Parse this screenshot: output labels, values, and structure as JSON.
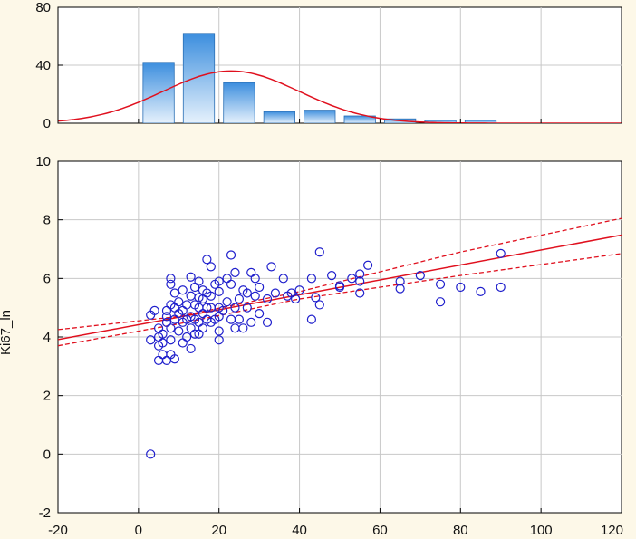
{
  "colors": {
    "background": "#fdf8e8",
    "plot_bg": "#ffffff",
    "grid": "#c8c8c8",
    "points": "#1f1fcc",
    "fit": "#e0101e",
    "bar_top": "#3c8ede",
    "bar_bottom": "#e6f1fc",
    "bar_edge": "#2a6fb5"
  },
  "chart_data": [
    {
      "type": "bar",
      "subtype": "histogram",
      "x_bins": [
        [
          0,
          10
        ],
        [
          10,
          20
        ],
        [
          20,
          30
        ],
        [
          30,
          40
        ],
        [
          40,
          50
        ],
        [
          50,
          60
        ],
        [
          60,
          70
        ],
        [
          70,
          80
        ],
        [
          80,
          90
        ]
      ],
      "values": [
        42,
        62,
        28,
        8,
        9,
        5,
        3,
        2,
        2
      ],
      "overlay": {
        "type": "normal_curve",
        "mean": 23,
        "sd": 17,
        "peak": 36
      },
      "xlim": [
        -20,
        120
      ],
      "ylim": [
        0,
        80
      ],
      "yticks": [
        "0",
        "40",
        "80"
      ],
      "grid": true
    },
    {
      "type": "scatter",
      "xlabel": "",
      "ylabel": "Ki67_ln",
      "xlim": [
        -20,
        120
      ],
      "ylim": [
        -2,
        10
      ],
      "xticks": [
        "-20",
        "0",
        "20",
        "40",
        "60",
        "80",
        "100",
        "120"
      ],
      "yticks": [
        "-2",
        "0",
        "2",
        "4",
        "6",
        "8",
        "10"
      ],
      "grid": true,
      "fit_line": {
        "slope": 0.0255,
        "intercept": 4.42
      },
      "confidence_band": {
        "upper": [
          [
            -20,
            4.25
          ],
          [
            10,
            4.7
          ],
          [
            40,
            5.55
          ],
          [
            80,
            6.9
          ],
          [
            120,
            8.05
          ]
        ],
        "lower": [
          [
            -20,
            3.7
          ],
          [
            10,
            4.45
          ],
          [
            40,
            5.3
          ],
          [
            80,
            6.1
          ],
          [
            120,
            6.85
          ]
        ]
      },
      "points": [
        [
          3,
          0
        ],
        [
          3,
          3.9
        ],
        [
          3,
          4.75
        ],
        [
          4,
          4.9
        ],
        [
          5,
          3.2
        ],
        [
          5,
          3.7
        ],
        [
          5,
          4.0
        ],
        [
          5,
          4.3
        ],
        [
          6,
          3.4
        ],
        [
          6,
          3.8
        ],
        [
          6,
          4.1
        ],
        [
          7,
          3.2
        ],
        [
          7,
          4.5
        ],
        [
          7,
          4.7
        ],
        [
          7,
          4.9
        ],
        [
          8,
          3.4
        ],
        [
          8,
          3.9
        ],
        [
          8,
          4.3
        ],
        [
          8,
          5.1
        ],
        [
          8,
          5.8
        ],
        [
          8,
          6.0
        ],
        [
          9,
          4.6
        ],
        [
          9,
          5.0
        ],
        [
          9,
          5.5
        ],
        [
          9,
          3.25
        ],
        [
          10,
          4.2
        ],
        [
          10,
          4.8
        ],
        [
          10,
          5.2
        ],
        [
          11,
          3.8
        ],
        [
          11,
          4.5
        ],
        [
          11,
          4.9
        ],
        [
          11,
          5.6
        ],
        [
          12,
          4.0
        ],
        [
          12,
          4.6
        ],
        [
          12,
          5.1
        ],
        [
          13,
          3.6
        ],
        [
          13,
          4.3
        ],
        [
          13,
          4.7
        ],
        [
          13,
          5.4
        ],
        [
          13,
          6.05
        ],
        [
          14,
          4.1
        ],
        [
          14,
          4.6
        ],
        [
          14,
          5.1
        ],
        [
          14,
          5.7
        ],
        [
          15,
          4.1
        ],
        [
          15,
          4.5
        ],
        [
          15,
          5.0
        ],
        [
          15,
          5.35
        ],
        [
          15,
          5.9
        ],
        [
          16,
          4.3
        ],
        [
          16,
          4.8
        ],
        [
          16,
          5.3
        ],
        [
          16,
          5.6
        ],
        [
          17,
          4.6
        ],
        [
          17,
          5.0
        ],
        [
          17,
          5.5
        ],
        [
          17,
          6.65
        ],
        [
          18,
          4.5
        ],
        [
          18,
          5.0
        ],
        [
          18,
          5.4
        ],
        [
          18,
          6.4
        ],
        [
          19,
          4.6
        ],
        [
          19,
          5.8
        ],
        [
          20,
          3.9
        ],
        [
          20,
          4.2
        ],
        [
          20,
          4.7
        ],
        [
          20,
          5.0
        ],
        [
          20,
          5.55
        ],
        [
          20,
          5.9
        ],
        [
          21,
          4.9
        ],
        [
          22,
          5.2
        ],
        [
          22,
          6.0
        ],
        [
          23,
          4.6
        ],
        [
          23,
          5.8
        ],
        [
          23,
          6.8
        ],
        [
          24,
          4.3
        ],
        [
          24,
          5.0
        ],
        [
          24,
          6.2
        ],
        [
          25,
          4.6
        ],
        [
          25,
          5.3
        ],
        [
          26,
          4.3
        ],
        [
          26,
          5.6
        ],
        [
          27,
          5.0
        ],
        [
          27,
          5.5
        ],
        [
          28,
          4.5
        ],
        [
          28,
          6.2
        ],
        [
          29,
          5.4
        ],
        [
          29,
          6.0
        ],
        [
          30,
          4.8
        ],
        [
          30,
          5.7
        ],
        [
          32,
          4.5
        ],
        [
          32,
          5.3
        ],
        [
          33,
          6.4
        ],
        [
          34,
          5.5
        ],
        [
          36,
          6.0
        ],
        [
          37,
          5.4
        ],
        [
          38,
          5.5
        ],
        [
          39,
          5.3
        ],
        [
          40,
          5.6
        ],
        [
          43,
          4.6
        ],
        [
          43,
          6.0
        ],
        [
          44,
          5.35
        ],
        [
          45,
          5.1
        ],
        [
          45,
          6.9
        ],
        [
          48,
          6.1
        ],
        [
          50,
          5.7
        ],
        [
          50,
          5.75
        ],
        [
          53,
          6.0
        ],
        [
          55,
          5.5
        ],
        [
          55,
          5.9
        ],
        [
          55,
          6.15
        ],
        [
          57,
          6.45
        ],
        [
          65,
          5.65
        ],
        [
          65,
          5.9
        ],
        [
          70,
          6.1
        ],
        [
          75,
          5.2
        ],
        [
          75,
          5.8
        ],
        [
          80,
          5.7
        ],
        [
          85,
          5.55
        ],
        [
          90,
          5.7
        ],
        [
          90,
          6.85
        ]
      ]
    }
  ]
}
